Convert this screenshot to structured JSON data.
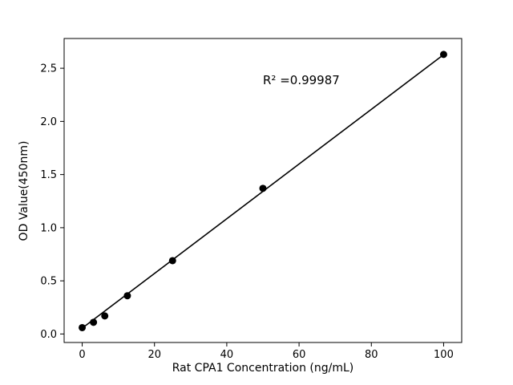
{
  "chart_data": {
    "type": "scatter",
    "title": "",
    "xlabel": "Rat CPA1 Concentration (ng/mL)",
    "ylabel": "OD Value(450nm)",
    "annotation": "R² =0.99987",
    "x": [
      0,
      3.125,
      6.25,
      12.5,
      25,
      50,
      100
    ],
    "y": [
      0.06,
      0.11,
      0.17,
      0.36,
      0.69,
      1.37,
      2.63
    ],
    "fit_line": {
      "x": [
        0,
        100
      ],
      "y": [
        0.055,
        2.628
      ]
    },
    "xlim": [
      -5,
      105
    ],
    "ylim": [
      -0.08,
      2.78
    ],
    "xticks": [
      0,
      20,
      40,
      60,
      80,
      100
    ],
    "yticks": [
      0.0,
      0.5,
      1.0,
      1.5,
      2.0,
      2.5
    ],
    "grid": false,
    "legend": null,
    "colors": {
      "marker": "#000000",
      "line": "#000000",
      "text": "#000000",
      "background": "#ffffff"
    }
  }
}
